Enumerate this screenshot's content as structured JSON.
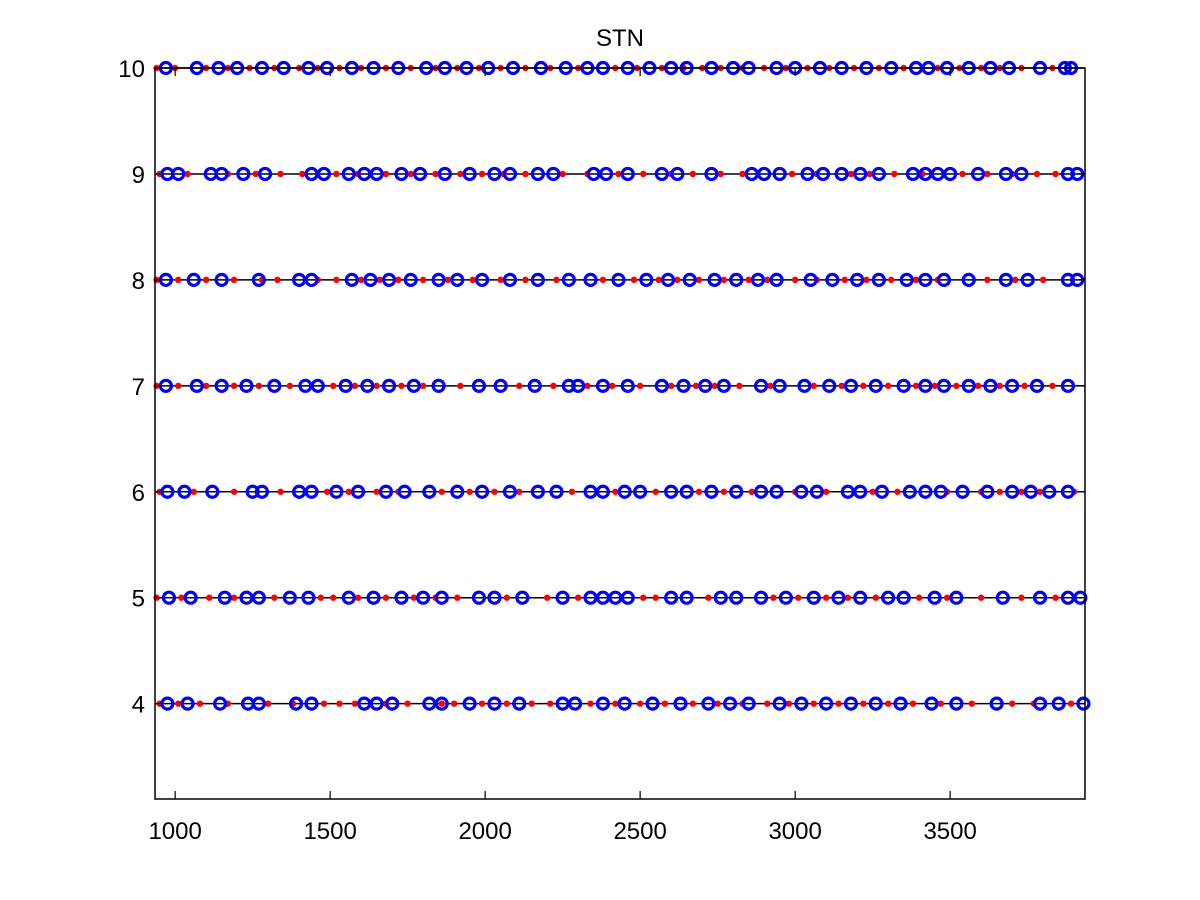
{
  "chart_data": {
    "type": "scatter",
    "title": "STN",
    "xlabel": "",
    "ylabel": "",
    "xlim": [
      935,
      3935
    ],
    "ylim": [
      3.1,
      10
    ],
    "xticks": [
      1000,
      1500,
      2000,
      2500,
      3000,
      3500
    ],
    "yticks": [
      4,
      5,
      6,
      7,
      8,
      9,
      10
    ],
    "grid": false,
    "colors": {
      "circles": "#0000ff",
      "dots": "#ff0000",
      "axes": "#000000",
      "lines": "#000000"
    },
    "rows": [
      {
        "y": 10,
        "circles": [
          970,
          1070,
          1140,
          1200,
          1280,
          1350,
          1430,
          1490,
          1570,
          1640,
          1720,
          1810,
          1870,
          1940,
          2010,
          2090,
          2180,
          2260,
          2330,
          2380,
          2460,
          2530,
          2600,
          2650,
          2730,
          2800,
          2850,
          2940,
          3000,
          3080,
          3150,
          3230,
          3310,
          3390,
          3430,
          3490,
          3560,
          3630,
          3690,
          3790,
          3870,
          3890
        ],
        "dots": [
          940,
          1000,
          1100,
          1170,
          1240,
          1320,
          1400,
          1460,
          1530,
          1600,
          1680,
          1760,
          1840,
          1910,
          1980,
          2050,
          2130,
          2210,
          2300,
          2420,
          2490,
          2570,
          2640,
          2700,
          2760,
          2830,
          2900,
          2970,
          3040,
          3110,
          3190,
          3270,
          3350,
          3460,
          3530,
          3600,
          3660,
          3730,
          3830
        ]
      },
      {
        "y": 9,
        "circles": [
          975,
          1010,
          1115,
          1150,
          1220,
          1290,
          1440,
          1480,
          1560,
          1610,
          1650,
          1730,
          1790,
          1870,
          1950,
          2030,
          2080,
          2170,
          2220,
          2350,
          2390,
          2460,
          2570,
          2620,
          2730,
          2860,
          2900,
          2950,
          3040,
          3090,
          3150,
          3210,
          3270,
          3380,
          3420,
          3460,
          3500,
          3590,
          3680,
          3730,
          3880,
          3910
        ],
        "dots": [
          950,
          1040,
          1170,
          1260,
          1340,
          1410,
          1520,
          1590,
          1680,
          1760,
          1840,
          1920,
          1990,
          2060,
          2130,
          2250,
          2330,
          2430,
          2510,
          2600,
          2670,
          2760,
          2830,
          2990,
          3070,
          3180,
          3240,
          3320,
          3410,
          3540,
          3620,
          3700,
          3780,
          3840
        ]
      },
      {
        "y": 8,
        "circles": [
          970,
          1060,
          1150,
          1270,
          1400,
          1440,
          1570,
          1630,
          1690,
          1760,
          1850,
          1910,
          1990,
          2080,
          2170,
          2270,
          2340,
          2430,
          2520,
          2590,
          2660,
          2740,
          2810,
          2880,
          2940,
          3050,
          3120,
          3200,
          3270,
          3360,
          3420,
          3480,
          3560,
          3680,
          3750,
          3880,
          3910
        ],
        "dots": [
          940,
          1010,
          1100,
          1190,
          1280,
          1330,
          1460,
          1520,
          1600,
          1660,
          1720,
          1800,
          1880,
          1960,
          2050,
          2130,
          2230,
          2380,
          2480,
          2560,
          2620,
          2690,
          2770,
          2850,
          2910,
          3000,
          3070,
          3160,
          3230,
          3310,
          3390,
          3460,
          3620,
          3710,
          3800
        ]
      },
      {
        "y": 7,
        "circles": [
          970,
          1070,
          1150,
          1230,
          1320,
          1420,
          1460,
          1550,
          1620,
          1690,
          1770,
          1850,
          1980,
          2050,
          2160,
          2270,
          2300,
          2380,
          2460,
          2570,
          2640,
          2710,
          2770,
          2890,
          2950,
          3030,
          3110,
          3180,
          3260,
          3350,
          3420,
          3480,
          3560,
          3630,
          3700,
          3780,
          3880
        ],
        "dots": [
          940,
          1010,
          1100,
          1190,
          1270,
          1370,
          1510,
          1580,
          1650,
          1730,
          1800,
          1920,
          2110,
          2220,
          2330,
          2410,
          2500,
          2600,
          2680,
          2740,
          2820,
          2920,
          3060,
          3150,
          3220,
          3300,
          3390,
          3450,
          3520,
          3590,
          3660,
          3740,
          3830
        ]
      },
      {
        "y": 6,
        "circles": [
          975,
          1030,
          1120,
          1250,
          1280,
          1400,
          1440,
          1520,
          1590,
          1680,
          1740,
          1820,
          1910,
          1990,
          2080,
          2170,
          2230,
          2340,
          2380,
          2450,
          2500,
          2600,
          2650,
          2730,
          2810,
          2890,
          2940,
          3020,
          3070,
          3170,
          3210,
          3280,
          3370,
          3420,
          3470,
          3540,
          3620,
          3700,
          3760,
          3820,
          3880
        ],
        "dots": [
          950,
          1060,
          1190,
          1340,
          1490,
          1560,
          1650,
          1720,
          1860,
          1950,
          2030,
          2110,
          2280,
          2420,
          2550,
          2690,
          2770,
          2860,
          3000,
          3100,
          3250,
          3330,
          3490,
          3600,
          3660,
          3730,
          3790,
          3900
        ]
      },
      {
        "y": 5,
        "circles": [
          980,
          1050,
          1160,
          1230,
          1270,
          1370,
          1430,
          1560,
          1640,
          1730,
          1800,
          1860,
          1980,
          2030,
          2120,
          2250,
          2340,
          2380,
          2420,
          2460,
          2600,
          2650,
          2760,
          2810,
          2890,
          2970,
          3060,
          3140,
          3210,
          3300,
          3350,
          3450,
          3520,
          3670,
          3790,
          3880,
          3920
        ],
        "dots": [
          940,
          1020,
          1110,
          1190,
          1320,
          1470,
          1510,
          1590,
          1680,
          1770,
          1840,
          1910,
          2070,
          2200,
          2300,
          2510,
          2550,
          2720,
          2930,
          3010,
          3100,
          3170,
          3260,
          3400,
          3490,
          3600,
          3730,
          3840
        ]
      },
      {
        "y": 4,
        "circles": [
          975,
          1040,
          1145,
          1235,
          1270,
          1390,
          1440,
          1610,
          1650,
          1700,
          1820,
          1860,
          1950,
          2030,
          2110,
          2250,
          2290,
          2380,
          2450,
          2540,
          2630,
          2720,
          2790,
          2850,
          2950,
          3020,
          3100,
          3180,
          3260,
          3340,
          3440,
          3520,
          3650,
          3790,
          3850,
          3930
        ],
        "dots": [
          950,
          1010,
          1080,
          1170,
          1300,
          1380,
          1480,
          1530,
          1580,
          1680,
          1750,
          1860,
          1900,
          1990,
          2070,
          2150,
          2210,
          2340,
          2420,
          2500,
          2580,
          2670,
          2750,
          2830,
          2910,
          2980,
          3060,
          3140,
          3220,
          3300,
          3380,
          3470,
          3570,
          3700,
          3770,
          3890
        ]
      }
    ]
  }
}
